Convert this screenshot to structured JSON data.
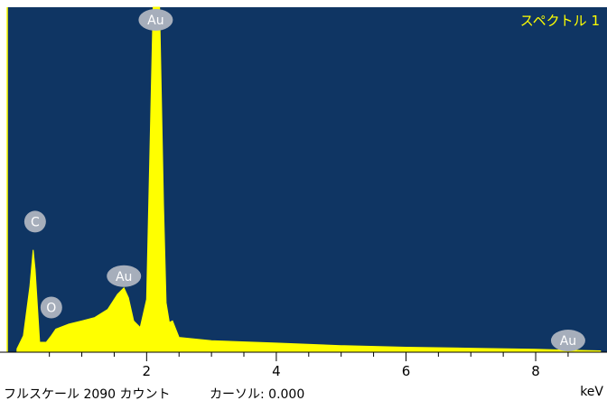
{
  "chart_data": {
    "type": "area",
    "title": "スペクトル 1",
    "xlabel": "keV",
    "ylabel": "",
    "xlim": [
      -0.15,
      9.1
    ],
    "ylim": [
      0,
      2090
    ],
    "x_ticks": [
      "2",
      "4",
      "6",
      "8"
    ],
    "x_tick_values": [
      2,
      4,
      6,
      8
    ],
    "grid": false,
    "series": [
      {
        "x": [
          0.0,
          0.1,
          0.2,
          0.25,
          0.28,
          0.35,
          0.45,
          0.53,
          0.6,
          0.8,
          1.0,
          1.2,
          1.4,
          1.55,
          1.65,
          1.72,
          1.8,
          1.9,
          2.0,
          2.05,
          2.1,
          2.14,
          2.2,
          2.26,
          2.3,
          2.35,
          2.4,
          2.5,
          3.0,
          4.0,
          5.0,
          6.0,
          7.0,
          8.0,
          8.5,
          9.0
        ],
        "values": [
          20,
          100,
          400,
          620,
          500,
          60,
          60,
          100,
          140,
          170,
          190,
          210,
          260,
          350,
          390,
          330,
          190,
          150,
          320,
          1200,
          2090,
          2090,
          2090,
          900,
          300,
          180,
          190,
          90,
          70,
          55,
          40,
          30,
          24,
          18,
          12,
          8
        ]
      }
    ],
    "peaks": [
      {
        "label": "Au",
        "x": 2.14,
        "y": 2090
      },
      {
        "label": "C",
        "x": 0.28,
        "y": 780
      },
      {
        "label": "Au",
        "x": 1.65,
        "y": 450
      },
      {
        "label": "O",
        "x": 0.53,
        "y": 260
      },
      {
        "label": "Au",
        "x": 8.5,
        "y": 60
      }
    ]
  },
  "status_bar": {
    "full_scale": "フルスケール 2090 カウント",
    "cursor": "カーソル: 0.000",
    "unit": "keV"
  },
  "colors": {
    "plot_bg": "#0f3563",
    "spectrum": "#ffff00",
    "label_fill": "#a6aebb",
    "title_text": "#ffff00"
  }
}
